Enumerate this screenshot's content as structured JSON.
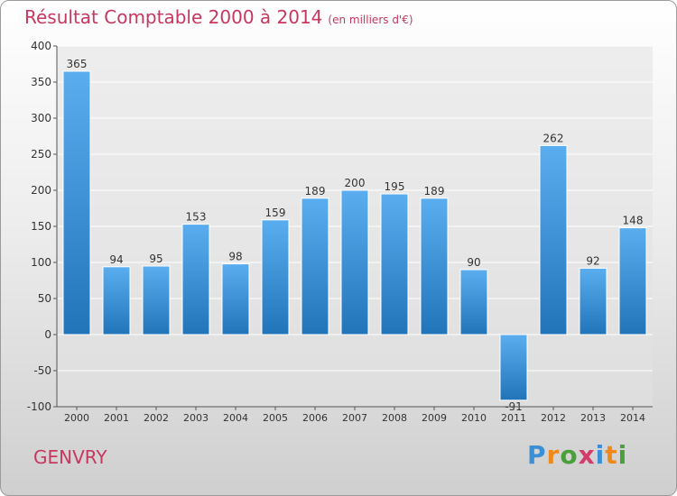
{
  "title": "Résultat Comptable 2000 à 2014",
  "subtitle": "(en milliers d'€)",
  "town": "GENVRY",
  "logo": {
    "text": "Proxiti",
    "letter_colors": [
      "#3a8fd6",
      "#ef8a1a",
      "#4a9f3a",
      "#d23c6a",
      "#3a8fd6",
      "#ef8a1a",
      "#4a9f3a"
    ]
  },
  "colors": {
    "bar_top": "#5aaef0",
    "bar_bottom": "#2274b8",
    "title": "#c8375f",
    "grid": "#ffffff"
  },
  "chart_data": {
    "type": "bar",
    "categories": [
      "2000",
      "2001",
      "2002",
      "2003",
      "2004",
      "2005",
      "2006",
      "2007",
      "2008",
      "2009",
      "2010",
      "2011",
      "2012",
      "2013",
      "2014"
    ],
    "values": [
      365,
      94,
      95,
      153,
      98,
      159,
      189,
      200,
      195,
      189,
      90,
      -91,
      262,
      92,
      148
    ],
    "labels": [
      "365",
      "94",
      "95",
      "153",
      "98",
      "159",
      "189",
      "200",
      "195",
      "189",
      "90",
      "-91",
      "262",
      "92",
      "148"
    ],
    "ylim": [
      -100,
      400
    ],
    "yticks": [
      400,
      350,
      300,
      250,
      200,
      150,
      100,
      50,
      0,
      -50,
      -100
    ],
    "xlabel": "",
    "ylabel": "",
    "grid": true
  }
}
